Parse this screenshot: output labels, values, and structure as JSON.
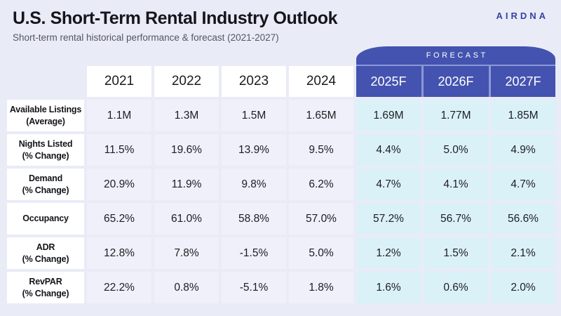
{
  "header": {
    "title": "U.S. Short-Term Rental Industry Outlook",
    "subtitle": "Short-term rental historical performance & forecast (2021-2027)",
    "logo": "AIRDNA"
  },
  "colors": {
    "page_background": "#E9EBF7",
    "forecast_blue": "#4453AF",
    "forecast_separator": "#8B98D8",
    "forecast_cell_cyan": "#DBF1F8",
    "historical_cell": "#EFF0F9",
    "white_cell": "#FFFFFF",
    "logo_navy": "#3642A5",
    "title_text": "#15161A",
    "subtitle_text": "#55565E"
  },
  "chart_data": {
    "type": "table",
    "title": "U.S. Short-Term Rental Industry Outlook",
    "subtitle": "Short-term rental historical performance & forecast (2021-2027)",
    "forecast_banner": "FORECAST",
    "columns": [
      "2021",
      "2022",
      "2023",
      "2024",
      "2025F",
      "2026F",
      "2027F"
    ],
    "historical_columns": [
      "2021",
      "2022",
      "2023",
      "2024"
    ],
    "forecast_columns": [
      "2025F",
      "2026F",
      "2027F"
    ],
    "rows": [
      {
        "label": "Available Listings",
        "sublabel": "(Average)",
        "values": [
          "1.1M",
          "1.3M",
          "1.5M",
          "1.65M",
          "1.69M",
          "1.77M",
          "1.85M"
        ]
      },
      {
        "label": "Nights Listed",
        "sublabel": "(% Change)",
        "values": [
          "11.5%",
          "19.6%",
          "13.9%",
          "9.5%",
          "4.4%",
          "5.0%",
          "4.9%"
        ]
      },
      {
        "label": "Demand",
        "sublabel": "(% Change)",
        "values": [
          "20.9%",
          "11.9%",
          "9.8%",
          "6.2%",
          "4.7%",
          "4.1%",
          "4.7%"
        ]
      },
      {
        "label": "Occupancy",
        "sublabel": "",
        "values": [
          "65.2%",
          "61.0%",
          "58.8%",
          "57.0%",
          "57.2%",
          "56.7%",
          "56.6%"
        ]
      },
      {
        "label": "ADR",
        "sublabel": "(% Change)",
        "values": [
          "12.8%",
          "7.8%",
          "-1.5%",
          "5.0%",
          "1.2%",
          "1.5%",
          "2.1%"
        ]
      },
      {
        "label": "RevPAR",
        "sublabel": "(% Change)",
        "values": [
          "22.2%",
          "0.8%",
          "-5.1%",
          "1.8%",
          "1.6%",
          "0.6%",
          "2.0%"
        ]
      }
    ]
  }
}
